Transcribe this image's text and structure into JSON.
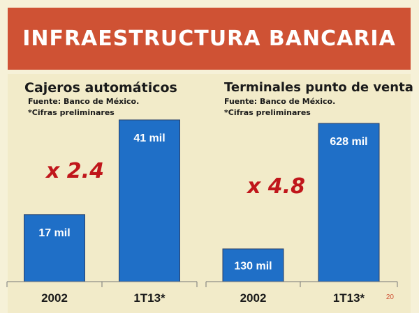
{
  "slide": {
    "title": "INFRAESTRUCTURA BANCARIA",
    "page_number": "20",
    "accent_color": "#cf5234",
    "background": "#f6f1d8"
  },
  "chart_data": [
    {
      "type": "bar",
      "title": "Cajeros automáticos",
      "source_note": "Fuente: Banco de México.",
      "footnote": "*Cifras preliminares",
      "categories": [
        "2002",
        "1T13*"
      ],
      "values": [
        17,
        41
      ],
      "value_labels": [
        "17 mil",
        "41 mil"
      ],
      "annotation": "x 2.4",
      "bar_color": "#1f6fc7",
      "annotation_color": "#c0161b"
    },
    {
      "type": "bar",
      "title": "Terminales punto de venta",
      "source_note": "Fuente: Banco de México.",
      "footnote": "*Cifras preliminares",
      "categories": [
        "2002",
        "1T13*"
      ],
      "values": [
        130,
        628
      ],
      "value_labels": [
        "130 mil",
        "628 mil"
      ],
      "annotation": "x 4.8",
      "bar_color": "#1f6fc7",
      "annotation_color": "#c0161b"
    }
  ]
}
